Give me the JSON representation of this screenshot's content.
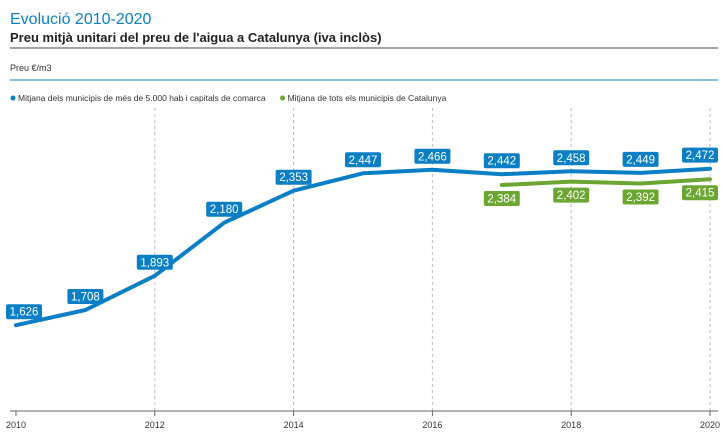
{
  "chart_data": {
    "type": "line",
    "title": "Evolució 2010-2020",
    "subtitle": "Preu mitjà unitari del preu de l'aigua a Catalunya (iva inclòs)",
    "ylabel": "Preu €/m3",
    "xlim": [
      2010,
      2020
    ],
    "ylim": [
      1.2,
      2.8
    ],
    "x_ticks": [
      "2010",
      "2012",
      "2014",
      "2016",
      "2018",
      "2020"
    ],
    "grid": "vertical-dashed",
    "legend_position": "top-left",
    "series": [
      {
        "name": "Mitjana dels municipis de més de 5.000 hab i capitals de comarca",
        "color": "#0a7fc5",
        "label_position": "above",
        "x": [
          2010,
          2011,
          2012,
          2013,
          2014,
          2015,
          2016,
          2017,
          2018,
          2019,
          2020
        ],
        "values": [
          1.626,
          1.708,
          1.893,
          2.18,
          2.353,
          2.447,
          2.466,
          2.442,
          2.458,
          2.449,
          2.472
        ],
        "labels": [
          "1,626",
          "1,708",
          "1,893",
          "2,180",
          "2,353",
          "2,447",
          "2,466",
          "2,442",
          "2,458",
          "2,449",
          "2,472"
        ]
      },
      {
        "name": "Mitjana de tots els municipis de Catalunya",
        "color": "#6ca632",
        "label_position": "below",
        "x": [
          2017,
          2018,
          2019,
          2020
        ],
        "values": [
          2.384,
          2.402,
          2.392,
          2.415
        ],
        "labels": [
          "2,384",
          "2,402",
          "2,392",
          "2,415"
        ]
      }
    ]
  }
}
